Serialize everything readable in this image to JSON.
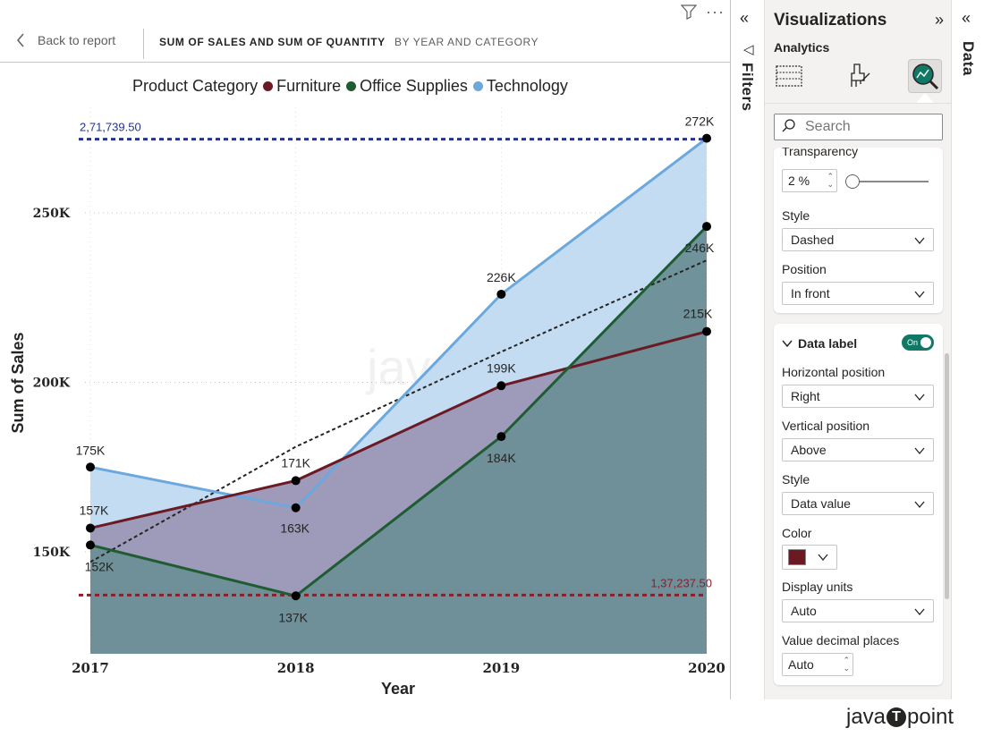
{
  "header": {
    "back_label": "Back to report",
    "title_main": "SUM OF SALES AND SUM OF QUANTITY",
    "title_sub": "BY YEAR AND CATEGORY",
    "dots": "···"
  },
  "legend": {
    "title": "Product Category",
    "items": [
      {
        "name": "Furniture",
        "color": "#6b1a24"
      },
      {
        "name": "Office Supplies",
        "color": "#1e5c32"
      },
      {
        "name": "Technology",
        "color": "#6aa8de"
      }
    ]
  },
  "chart_data": {
    "type": "area",
    "x": [
      "2017",
      "2018",
      "2019",
      "2020"
    ],
    "xlabel": "Year",
    "ylabel": "Sum of Sales",
    "ylim": [
      120000,
      272000
    ],
    "yticks": [
      150000,
      200000,
      250000
    ],
    "ytick_labels": [
      "150K",
      "200K",
      "250K"
    ],
    "series": [
      {
        "name": "Technology",
        "color": "#6aa8de",
        "fill": "#c2dbf2",
        "values": [
          175000,
          163000,
          226000,
          272000
        ],
        "labels": [
          "175K",
          "163K",
          "226K",
          "272K"
        ]
      },
      {
        "name": "Furniture",
        "color": "#6b1a24",
        "fill": "#9d98b9",
        "values": [
          157000,
          171000,
          199000,
          215000
        ],
        "labels": [
          "157K",
          "171K",
          "199K",
          "215K"
        ]
      },
      {
        "name": "Office Supplies",
        "color": "#1e5c32",
        "fill": "#6e9098",
        "values": [
          152000,
          137000,
          184000,
          246000
        ],
        "labels": [
          "152K",
          "137K",
          "184K",
          "246K"
        ]
      }
    ],
    "reference_lines": [
      {
        "kind": "max",
        "value": 271739.5,
        "label": "2,71,739.50",
        "color": "#26338c",
        "style": "dashed"
      },
      {
        "kind": "min",
        "value": 137237.5,
        "label": "1,37,237.50",
        "color": "#8b1f2a",
        "style": "dashed"
      }
    ],
    "trend_line": {
      "style": "dashed",
      "color": "#252423",
      "values": [
        147000,
        181000,
        209000,
        236000
      ]
    },
    "watermark": "javaTpoint"
  },
  "filters": {
    "label": "Filters",
    "collapse_icon": "«",
    "icon": "◁"
  },
  "viz_pane": {
    "title": "Visualizations",
    "expand_icon": "»",
    "collapse_icon": "«",
    "section": "Analytics",
    "search_placeholder": "Search",
    "line_card": {
      "transparency_label": "Transparency",
      "transparency_value": "2 %",
      "transparency_level": 0.02,
      "style_label": "Style",
      "style_value": "Dashed",
      "position_label": "Position",
      "position_value": "In front"
    },
    "data_label_card": {
      "title": "Data label",
      "toggle": "On",
      "horizontal_position_label": "Horizontal position",
      "horizontal_position_value": "Right",
      "vertical_position_label": "Vertical position",
      "vertical_position_value": "Above",
      "style_label": "Style",
      "style_value": "Data value",
      "color_label": "Color",
      "color_value": "#6b1a24",
      "display_units_label": "Display units",
      "display_units_value": "Auto",
      "decimal_places_label": "Value decimal places",
      "decimal_places_value": "Auto"
    }
  },
  "data_pane": {
    "label": "Data",
    "collapse_icon": "«"
  },
  "site_logo": {
    "left": "java",
    "mark": "T",
    "right": "point"
  }
}
